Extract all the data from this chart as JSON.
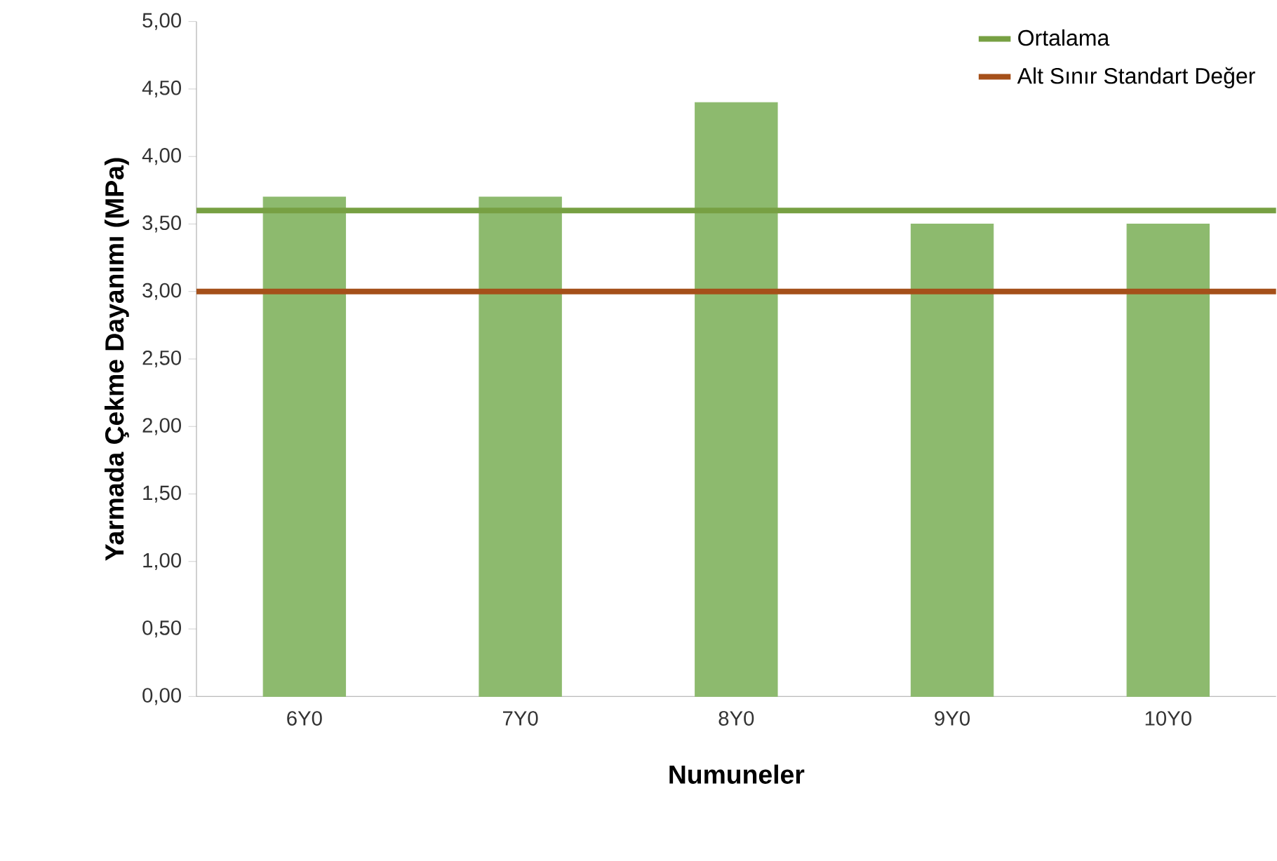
{
  "chart_data": {
    "type": "bar",
    "xlabel": "Numuneler",
    "ylabel": "Yarmada Çekme Dayanımı (MPa)",
    "categories": [
      "6Y0",
      "7Y0",
      "8Y0",
      "9Y0",
      "10Y0"
    ],
    "series": [
      {
        "color": "#8dba6e",
        "values": [
          3.7,
          3.7,
          4.4,
          3.5,
          3.5
        ]
      }
    ],
    "ref_lines": [
      {
        "axis": "y",
        "value": 3.6,
        "label": "Ortalama",
        "color": "#77a043"
      },
      {
        "axis": "y",
        "value": 3.0,
        "label": "Alt Sınır Standart Değer",
        "color": "#a5501a"
      }
    ],
    "ylim": [
      0,
      5
    ],
    "yticks": [
      {
        "value": 0,
        "label": "0,00"
      },
      {
        "value": 0.5,
        "label": "0,50"
      },
      {
        "value": 1,
        "label": "1,00"
      },
      {
        "value": 1.5,
        "label": "1,50"
      },
      {
        "value": 2,
        "label": "2,00"
      },
      {
        "value": 2.5,
        "label": "2,50"
      },
      {
        "value": 3,
        "label": "3,00"
      },
      {
        "value": 3.5,
        "label": "3,50"
      },
      {
        "value": 4,
        "label": "4,00"
      },
      {
        "value": 4.5,
        "label": "4,50"
      },
      {
        "value": 5,
        "label": "5,00"
      }
    ],
    "legend": "top right",
    "grid": false
  }
}
